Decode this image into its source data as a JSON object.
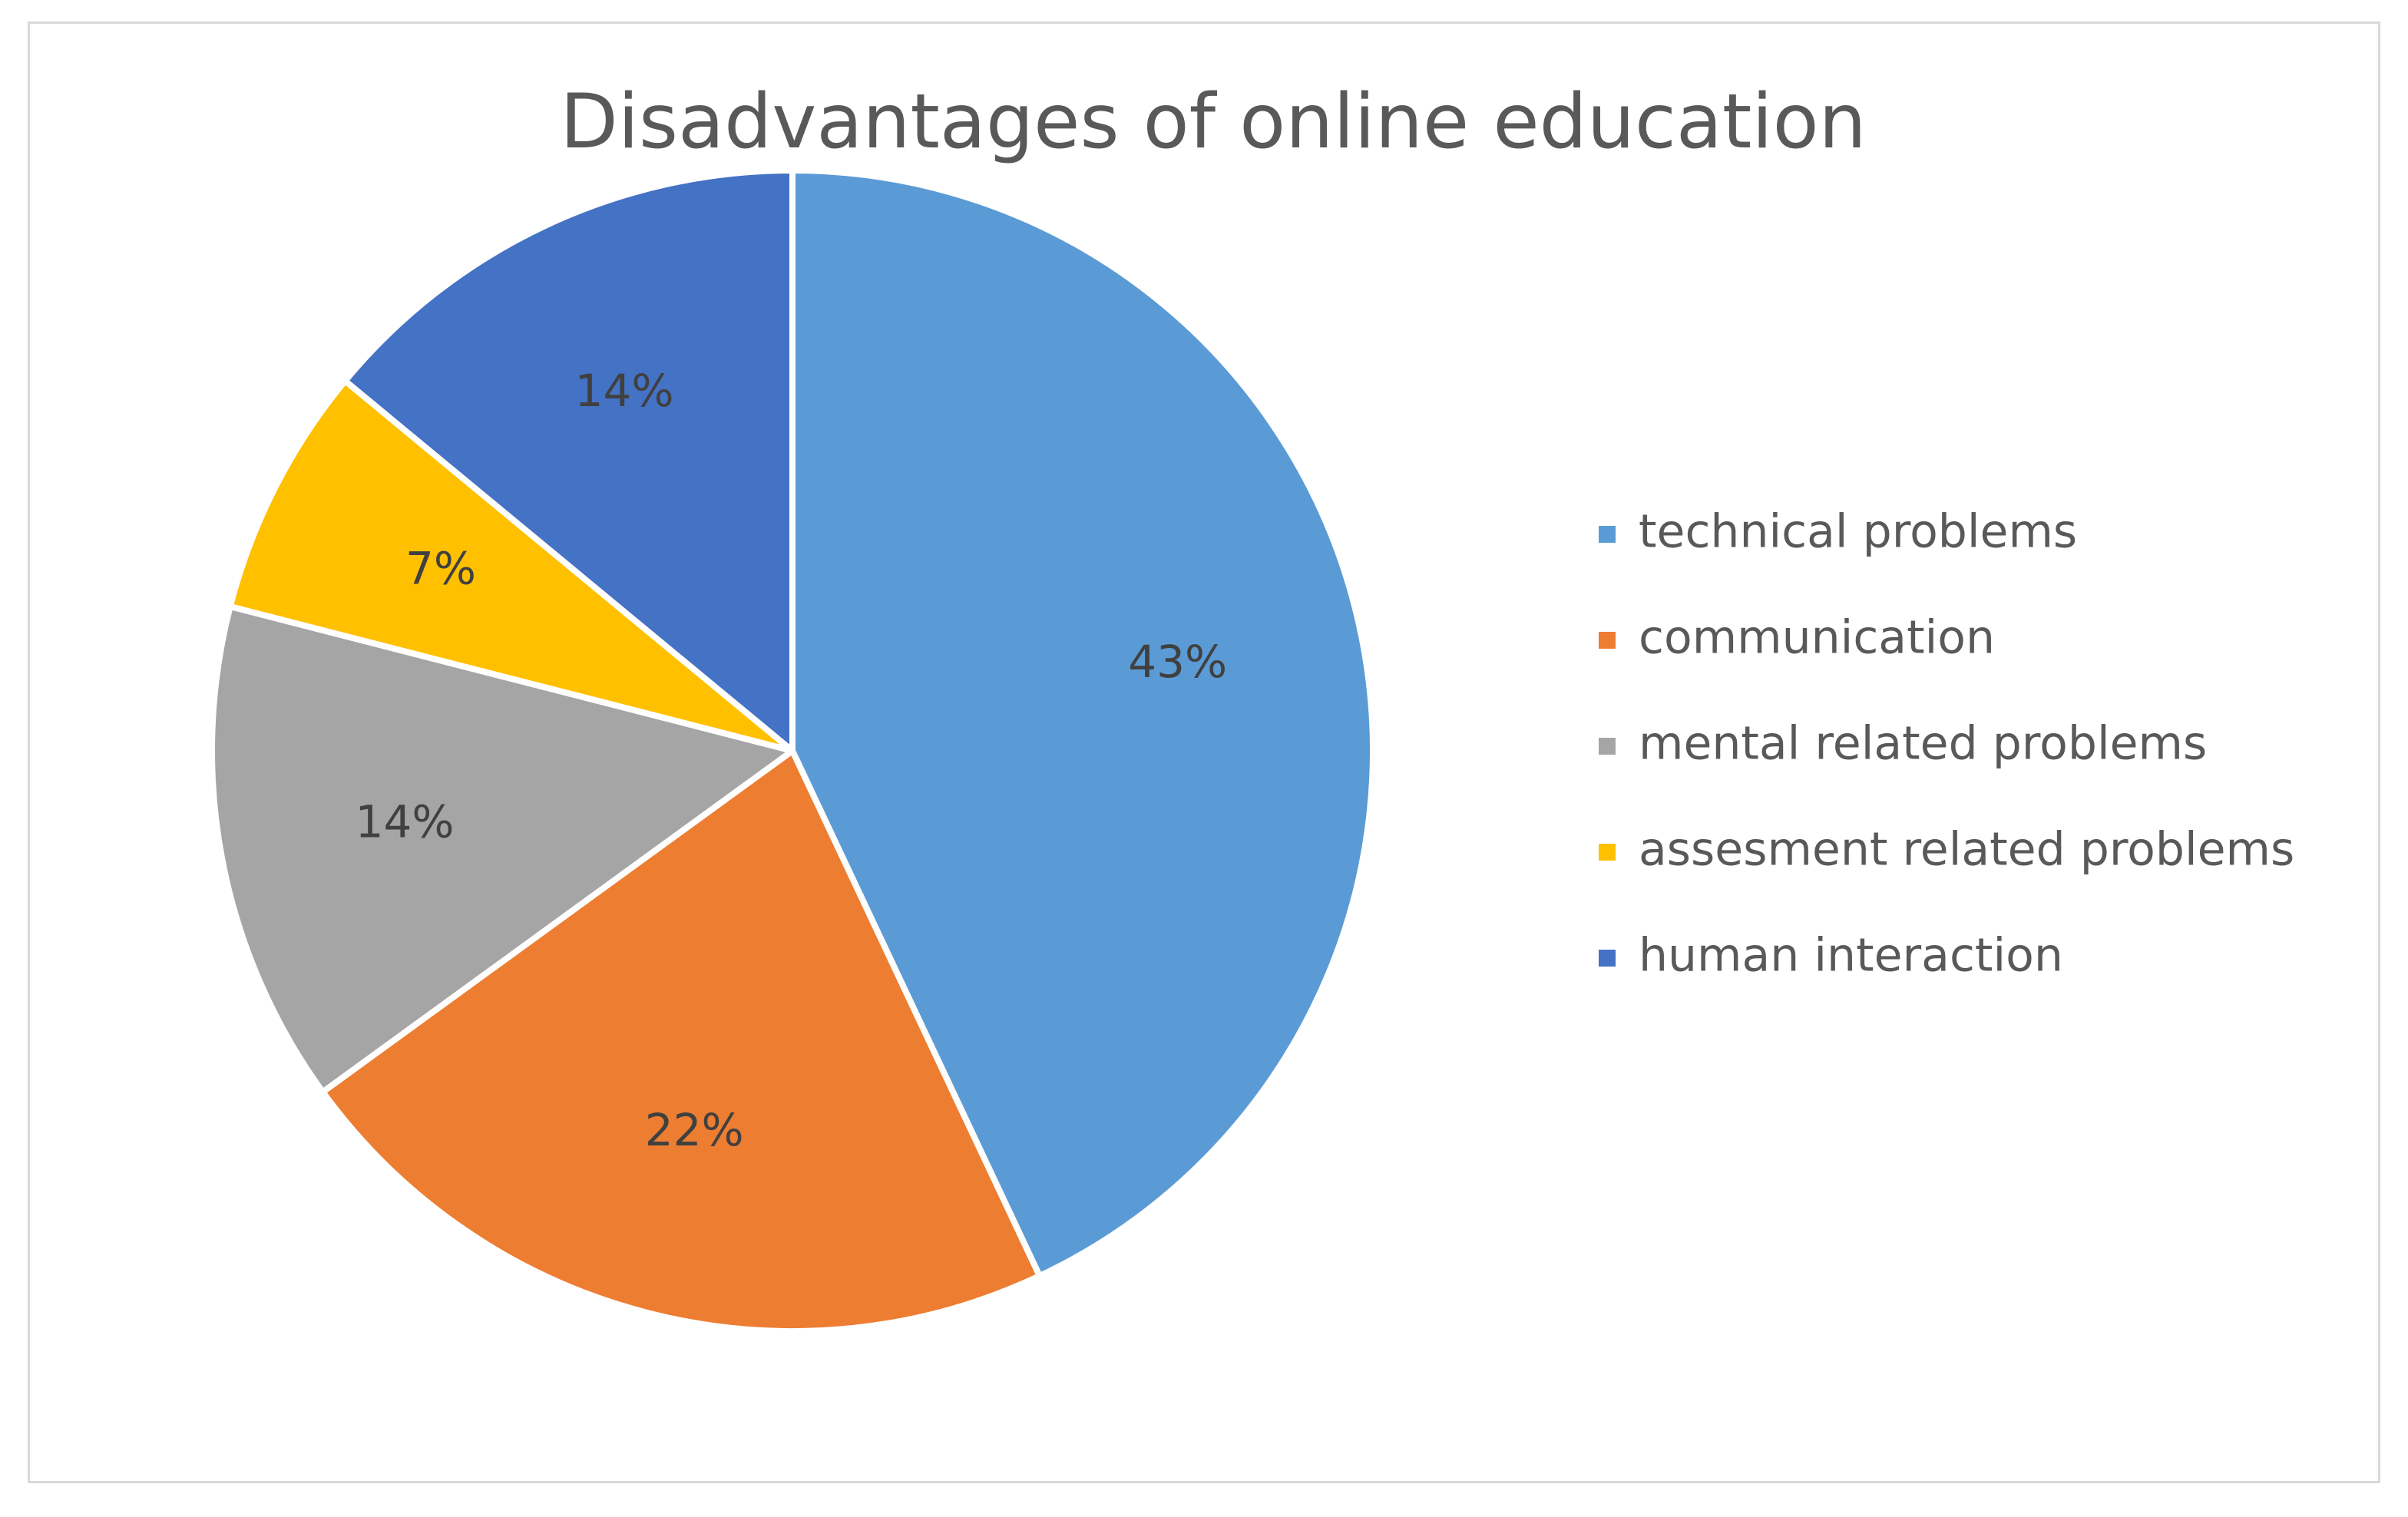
{
  "chart_data": {
    "type": "pie",
    "title": "Disadvantages of online education",
    "categories": [
      "technical problems",
      "communication",
      "mental related problems",
      "assesment related problems",
      "human interaction"
    ],
    "values": [
      43,
      22,
      14,
      7,
      14
    ],
    "data_labels": [
      "43%",
      "22%",
      "14%",
      "7%",
      "14%"
    ],
    "colors": [
      "#5b9bd5",
      "#ed7d31",
      "#a5a5a5",
      "#ffc000",
      "#4472c4"
    ],
    "start_angle_deg": 0,
    "direction": "clockwise",
    "legend_position": "right"
  }
}
